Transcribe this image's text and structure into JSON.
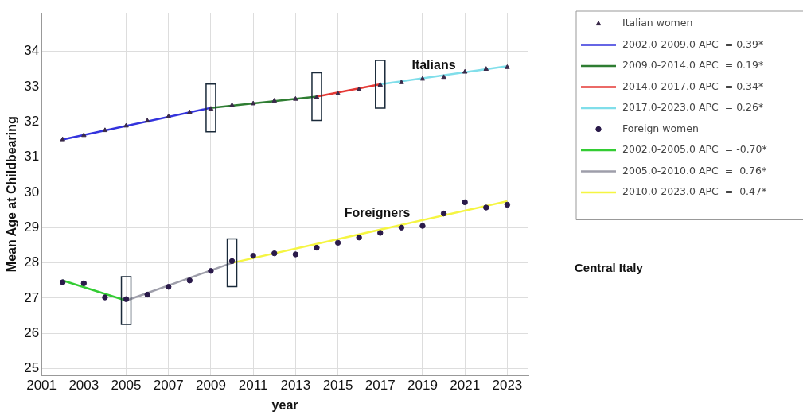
{
  "chart_data": {
    "type": "line",
    "xlabel": "year",
    "ylabel": "Mean Age at Childbearing",
    "xlim": [
      2001,
      2024
    ],
    "xticks": [
      2001,
      2003,
      2005,
      2007,
      2009,
      2011,
      2013,
      2015,
      2017,
      2019,
      2021,
      2023
    ],
    "ylim": [
      24.8,
      35.1
    ],
    "yticks": [
      25,
      26,
      27,
      28,
      29,
      30,
      31,
      32,
      33,
      34
    ],
    "grid": true,
    "legend": "right",
    "series": [
      {
        "name": "Italian women",
        "type": "scatter",
        "marker": "triangle",
        "color": "#3a2a4a",
        "x": [
          2002,
          2003,
          2004,
          2005,
          2006,
          2007,
          2008,
          2009,
          2010,
          2011,
          2012,
          2013,
          2014,
          2015,
          2016,
          2017,
          2018,
          2019,
          2020,
          2021,
          2022,
          2023
        ],
        "values": [
          31.5,
          31.62,
          31.76,
          31.89,
          32.03,
          32.15,
          32.27,
          32.37,
          32.47,
          32.52,
          32.6,
          32.65,
          32.7,
          32.8,
          32.92,
          33.05,
          33.12,
          33.22,
          33.27,
          33.42,
          33.5,
          33.55
        ]
      },
      {
        "name": "2002.0-2009.0 APC  = 0.39*",
        "type": "line",
        "color": "#3333dd",
        "x": [
          2002,
          2009
        ],
        "values": [
          31.5,
          32.4
        ]
      },
      {
        "name": "2009.0-2014.0 APC  = 0.19*",
        "type": "line",
        "color": "#2e7d32",
        "x": [
          2009,
          2014
        ],
        "values": [
          32.4,
          32.72
        ]
      },
      {
        "name": "2014.0-2017.0 APC  = 0.34*",
        "type": "line",
        "color": "#e53935",
        "x": [
          2014,
          2017
        ],
        "values": [
          32.72,
          33.07
        ]
      },
      {
        "name": "2017.0-2023.0 APC  = 0.26*",
        "type": "line",
        "color": "#80deea",
        "x": [
          2017,
          2023
        ],
        "values": [
          33.07,
          33.58
        ]
      },
      {
        "name": "Foreign women",
        "type": "scatter",
        "marker": "circle",
        "color": "#2a1a4a",
        "x": [
          2002,
          2003,
          2004,
          2005,
          2006,
          2007,
          2008,
          2009,
          2010,
          2011,
          2012,
          2013,
          2014,
          2015,
          2016,
          2017,
          2018,
          2019,
          2020,
          2021,
          2022,
          2023
        ],
        "values": [
          27.45,
          27.42,
          27.02,
          26.97,
          27.1,
          27.32,
          27.5,
          27.77,
          28.05,
          28.2,
          28.27,
          28.24,
          28.43,
          28.57,
          28.72,
          28.85,
          29.0,
          29.05,
          29.4,
          29.72,
          29.57,
          29.65
        ]
      },
      {
        "name": "2002.0-2005.0 APC  = -0.70*",
        "type": "line",
        "color": "#33cc33",
        "x": [
          2002,
          2005
        ],
        "values": [
          27.5,
          26.93
        ]
      },
      {
        "name": "2005.0-2010.0 APC  =  0.76*",
        "type": "line",
        "color": "#9e9eaa",
        "x": [
          2005,
          2010
        ],
        "values": [
          26.93,
          28.0
        ]
      },
      {
        "name": "2010.0-2023.0 APC  =  0.47*",
        "type": "line",
        "color": "#f5f542",
        "x": [
          2010,
          2023
        ],
        "values": [
          28.0,
          29.75
        ]
      }
    ],
    "annotations": [
      "Italians",
      "Foreigners",
      "Central Italy"
    ]
  }
}
